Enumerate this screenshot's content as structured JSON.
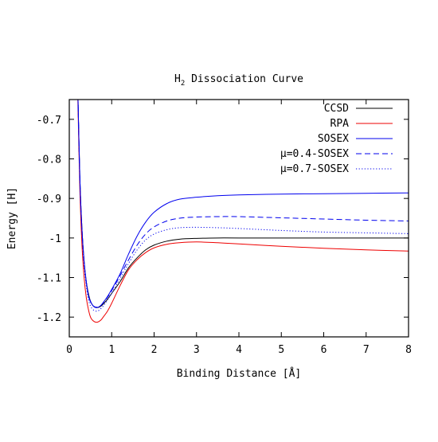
{
  "chart_data": {
    "type": "line",
    "title": {
      "main": "H",
      "sub": "2",
      "rest": " Dissociation Curve"
    },
    "xlabel": "Binding Distance [Å]",
    "ylabel": "Energy [H]",
    "xlim": [
      0,
      8
    ],
    "ylim": [
      -1.25,
      -0.65
    ],
    "xticks": [
      0,
      1,
      2,
      3,
      4,
      5,
      6,
      7,
      8
    ],
    "xtick_labels": [
      "0",
      "1",
      "2",
      "3",
      "4",
      "5",
      "6",
      "7",
      "8"
    ],
    "yticks": [
      -1.2,
      -1.1,
      -1.0,
      -0.9,
      -0.8,
      -0.7
    ],
    "ytick_labels": [
      "-1.2",
      "-1.1",
      "-1",
      "-0.9",
      "-0.8",
      "-0.7"
    ],
    "grid": false,
    "legend_position": "top-right",
    "series": [
      {
        "name": "CCSD",
        "color": "#000000",
        "dash": "solid",
        "x": [
          0.2,
          0.25,
          0.3,
          0.35,
          0.4,
          0.45,
          0.5,
          0.55,
          0.6,
          0.65,
          0.7,
          0.75,
          0.8,
          0.9,
          1.0,
          1.2,
          1.4,
          1.6,
          1.8,
          2.0,
          2.3,
          2.6,
          3.0,
          3.5,
          4.0,
          5.0,
          6.0,
          7.0,
          8.0
        ],
        "y": [
          -0.62,
          -0.85,
          -0.98,
          -1.06,
          -1.11,
          -1.14,
          -1.16,
          -1.17,
          -1.175,
          -1.176,
          -1.175,
          -1.172,
          -1.167,
          -1.155,
          -1.14,
          -1.11,
          -1.075,
          -1.05,
          -1.03,
          -1.018,
          -1.008,
          -1.003,
          -1.001,
          -1.0,
          -1.0,
          -1.0,
          -1.0,
          -1.0,
          -1.0
        ]
      },
      {
        "name": "RPA",
        "color": "#ee0000",
        "dash": "solid",
        "x": [
          0.2,
          0.25,
          0.3,
          0.35,
          0.4,
          0.45,
          0.5,
          0.55,
          0.6,
          0.65,
          0.7,
          0.75,
          0.8,
          0.9,
          1.0,
          1.2,
          1.4,
          1.6,
          1.8,
          2.0,
          2.3,
          2.6,
          3.0,
          3.5,
          4.0,
          5.0,
          6.0,
          7.0,
          8.0
        ],
        "y": [
          -0.64,
          -0.88,
          -1.02,
          -1.1,
          -1.15,
          -1.18,
          -1.2,
          -1.208,
          -1.212,
          -1.213,
          -1.211,
          -1.207,
          -1.2,
          -1.185,
          -1.165,
          -1.12,
          -1.08,
          -1.055,
          -1.037,
          -1.025,
          -1.016,
          -1.012,
          -1.01,
          -1.012,
          -1.015,
          -1.021,
          -1.026,
          -1.03,
          -1.033
        ]
      },
      {
        "name": "SOSEX",
        "color": "#0000ee",
        "dash": "solid",
        "x": [
          0.2,
          0.25,
          0.3,
          0.35,
          0.4,
          0.45,
          0.5,
          0.55,
          0.6,
          0.65,
          0.7,
          0.75,
          0.8,
          0.9,
          1.0,
          1.2,
          1.4,
          1.6,
          1.8,
          2.0,
          2.3,
          2.6,
          3.0,
          3.5,
          4.0,
          5.0,
          6.0,
          7.0,
          8.0
        ],
        "y": [
          -0.62,
          -0.85,
          -0.98,
          -1.06,
          -1.11,
          -1.145,
          -1.16,
          -1.17,
          -1.175,
          -1.176,
          -1.174,
          -1.17,
          -1.163,
          -1.148,
          -1.13,
          -1.09,
          -1.04,
          -0.995,
          -0.96,
          -0.935,
          -0.913,
          -0.902,
          -0.897,
          -0.893,
          -0.891,
          -0.889,
          -0.888,
          -0.887,
          -0.886
        ]
      },
      {
        "name": "μ=0.4-SOSEX",
        "color": "#0000ee",
        "dash": "dashed",
        "x": [
          0.2,
          0.25,
          0.3,
          0.35,
          0.4,
          0.45,
          0.5,
          0.55,
          0.6,
          0.65,
          0.7,
          0.75,
          0.8,
          0.9,
          1.0,
          1.2,
          1.4,
          1.6,
          1.8,
          2.0,
          2.3,
          2.6,
          3.0,
          3.5,
          4.0,
          5.0,
          6.0,
          7.0,
          8.0
        ],
        "y": [
          -0.62,
          -0.85,
          -0.98,
          -1.06,
          -1.11,
          -1.145,
          -1.162,
          -1.17,
          -1.174,
          -1.175,
          -1.174,
          -1.17,
          -1.164,
          -1.15,
          -1.133,
          -1.095,
          -1.055,
          -1.018,
          -0.99,
          -0.972,
          -0.957,
          -0.95,
          -0.947,
          -0.946,
          -0.946,
          -0.949,
          -0.952,
          -0.955,
          -0.957
        ]
      },
      {
        "name": "μ=0.7-SOSEX",
        "color": "#0000ee",
        "dash": "dotted",
        "x": [
          0.2,
          0.25,
          0.3,
          0.35,
          0.4,
          0.45,
          0.5,
          0.55,
          0.6,
          0.65,
          0.7,
          0.75,
          0.8,
          0.9,
          1.0,
          1.2,
          1.4,
          1.6,
          1.8,
          2.0,
          2.3,
          2.6,
          3.0,
          3.5,
          4.0,
          5.0,
          6.0,
          7.0,
          8.0
        ],
        "y": [
          -0.62,
          -0.86,
          -0.99,
          -1.07,
          -1.12,
          -1.155,
          -1.172,
          -1.18,
          -1.184,
          -1.185,
          -1.183,
          -1.178,
          -1.172,
          -1.157,
          -1.14,
          -1.102,
          -1.064,
          -1.03,
          -1.005,
          -0.99,
          -0.979,
          -0.974,
          -0.973,
          -0.974,
          -0.976,
          -0.981,
          -0.985,
          -0.987,
          -0.989
        ]
      }
    ]
  }
}
